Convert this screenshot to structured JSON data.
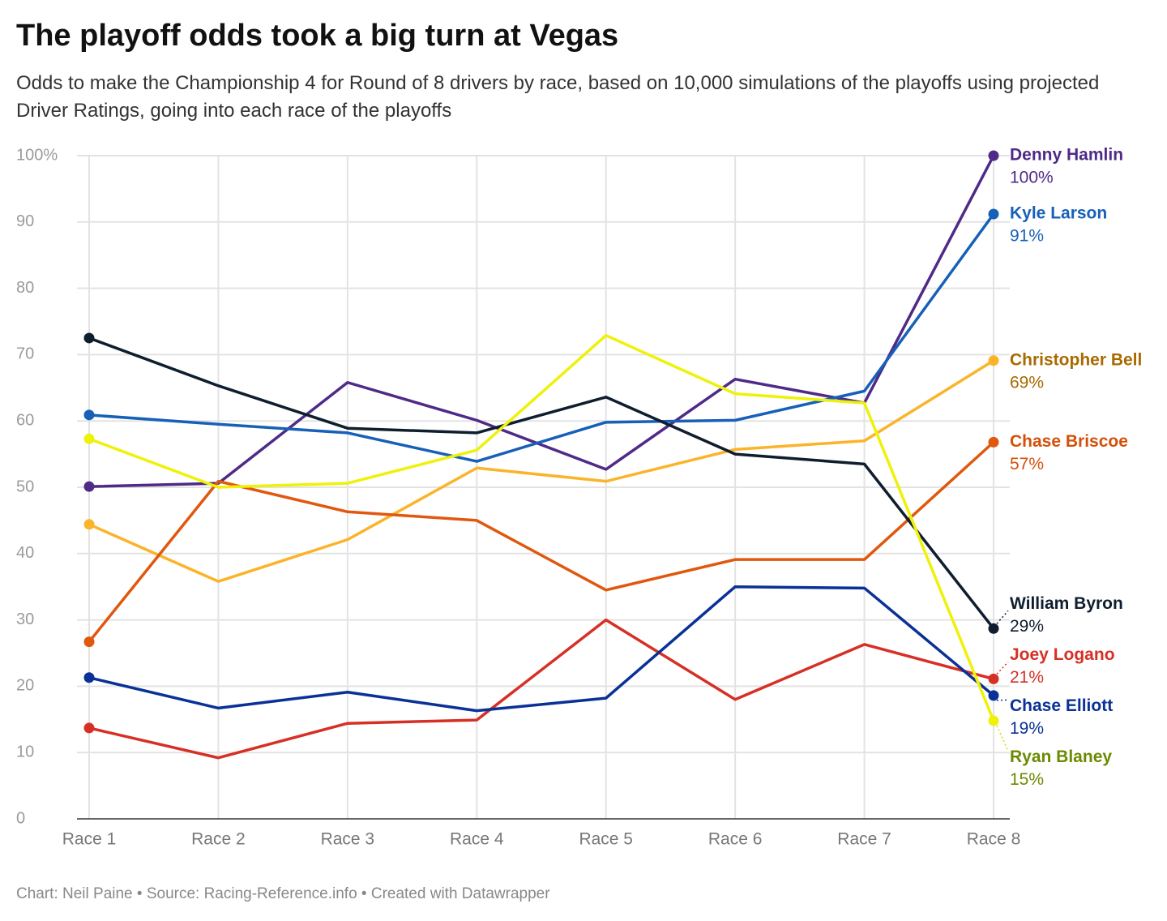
{
  "chart_data": {
    "type": "line",
    "title": "The playoff odds took a big turn at Vegas",
    "subtitle": "Odds to make the Championship 4 for Round of 8 drivers by race, based on 10,000 simulations of the playoffs using projected Driver Ratings, going into each race of the playoffs",
    "footer": "Chart: Neil Paine • Source: Racing-Reference.info • Created with Datawrapper",
    "categories": [
      "Race 1",
      "Race 2",
      "Race 3",
      "Race 4",
      "Race 5",
      "Race 6",
      "Race 7",
      "Race 8"
    ],
    "ylim": [
      0,
      100
    ],
    "yticks": [
      0,
      10,
      20,
      30,
      40,
      50,
      60,
      70,
      80,
      90,
      {
        "value": 100,
        "label": "100%"
      }
    ],
    "grid": true,
    "series": [
      {
        "name": "Denny Hamlin",
        "color": "#4f2a87",
        "label_color": "#4f2a87",
        "values": [
          50.1,
          50.6,
          65.8,
          60.1,
          52.7,
          66.3,
          62.7,
          100
        ],
        "value_labels": [
          null,
          null,
          null,
          null,
          null,
          null,
          null,
          "100%"
        ]
      },
      {
        "name": "Kyle Larson",
        "color": "#1760b8",
        "label_color": "#1760b8",
        "values": [
          60.9,
          59.5,
          58.2,
          53.9,
          59.8,
          60.1,
          64.5,
          91.2
        ],
        "value_labels": [
          null,
          null,
          null,
          null,
          null,
          null,
          null,
          "91%"
        ]
      },
      {
        "name": "Christopher Bell",
        "color": "#fbb42a",
        "label_color": "#a86a00",
        "values": [
          44.4,
          35.8,
          42.1,
          52.9,
          50.9,
          55.7,
          57.0,
          69.1
        ],
        "value_labels": [
          null,
          null,
          null,
          null,
          null,
          null,
          null,
          "69%"
        ]
      },
      {
        "name": "Chase Briscoe",
        "color": "#e0580e",
        "label_color": "#d4500a",
        "values": [
          26.7,
          50.9,
          46.3,
          45.0,
          34.5,
          39.1,
          39.1,
          56.8
        ],
        "value_labels": [
          null,
          null,
          null,
          null,
          null,
          null,
          null,
          "57%"
        ]
      },
      {
        "name": "William Byron",
        "color": "#0f1e2e",
        "label_color": "#0f1e2e",
        "values": [
          72.5,
          65.3,
          58.9,
          58.2,
          63.6,
          55.0,
          53.5,
          28.7
        ],
        "value_labels": [
          null,
          null,
          null,
          null,
          null,
          null,
          null,
          "29%"
        ]
      },
      {
        "name": "Joey Logano",
        "color": "#d63026",
        "label_color": "#d63026",
        "values": [
          13.7,
          9.2,
          14.4,
          14.9,
          30.0,
          18.0,
          26.3,
          21.1
        ],
        "value_labels": [
          null,
          null,
          null,
          null,
          null,
          null,
          null,
          "21%"
        ]
      },
      {
        "name": "Chase Elliott",
        "color": "#0a3196",
        "label_color": "#0a3196",
        "values": [
          21.3,
          16.7,
          19.1,
          16.3,
          18.2,
          35.0,
          34.8,
          18.6
        ],
        "value_labels": [
          null,
          null,
          null,
          null,
          null,
          null,
          null,
          "19%"
        ]
      },
      {
        "name": "Ryan Blaney",
        "color": "#eef20a",
        "label_color": "#6b8a00",
        "values": [
          57.3,
          50.0,
          50.6,
          55.6,
          72.9,
          64.1,
          62.7,
          14.8
        ],
        "value_labels": [
          null,
          null,
          null,
          null,
          null,
          null,
          null,
          "15%"
        ]
      }
    ]
  }
}
